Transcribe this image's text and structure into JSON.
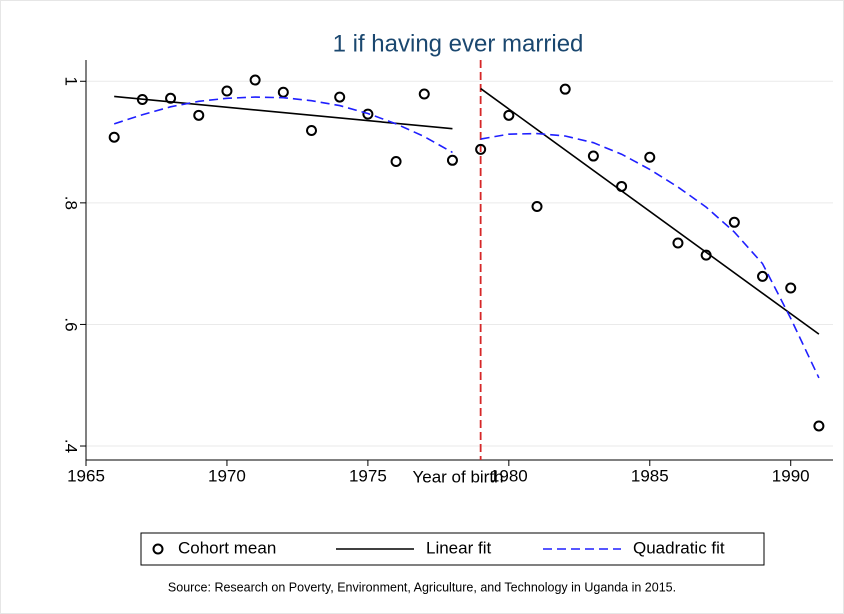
{
  "chart_data": {
    "type": "scatter",
    "title": "1 if having ever married",
    "x_label": "Year of birth",
    "source": "Source: Research on Poverty, Environment, Agriculture, and Technology in Uganda in 2015.",
    "xlim": [
      1965,
      1991.5
    ],
    "xticks": [
      1965,
      1970,
      1975,
      1980,
      1985,
      1990
    ],
    "ylim": [
      0.377,
      1.035
    ],
    "yticks": [
      {
        "value": 0.4,
        "label": ".4"
      },
      {
        "value": 0.6,
        "label": ".6"
      },
      {
        "value": 0.8,
        "label": ".8"
      },
      1
    ],
    "grid": true,
    "vline": 1979,
    "vline_color": "#d62728",
    "series": [
      {
        "name": "Cohort mean",
        "style": "circle",
        "color": "#000000",
        "x": [
          1966,
          1967,
          1968,
          1969,
          1970,
          1971,
          1972,
          1973,
          1974,
          1975,
          1976,
          1977,
          1978,
          1979,
          1980,
          1981,
          1982,
          1983,
          1984,
          1985,
          1986,
          1987,
          1988,
          1989,
          1990,
          1991
        ],
        "values": [
          0.908,
          0.97,
          0.972,
          0.944,
          0.984,
          1.002,
          0.982,
          0.919,
          0.974,
          0.946,
          0.868,
          0.979,
          0.87,
          0.888,
          0.944,
          0.794,
          0.987,
          0.877,
          0.827,
          0.875,
          0.734,
          0.714,
          0.768,
          0.679,
          0.66,
          0.433
        ]
      },
      {
        "name": "Linear fit",
        "style": "solid",
        "color": "#000000",
        "x": [
          1966,
          1978,
          1978.5,
          1979,
          1991
        ],
        "values": [
          0.975,
          0.922,
          null,
          0.988,
          0.584
        ]
      },
      {
        "name": "Quadratic fit",
        "style": "dashed",
        "color": "#1f1fff",
        "x": [
          1966,
          1967,
          1968,
          1969,
          1970,
          1971,
          1972,
          1973,
          1974,
          1975,
          1976,
          1977,
          1978,
          1978.5,
          1979,
          1980,
          1981,
          1982,
          1983,
          1984,
          1985,
          1986,
          1987,
          1988,
          1989,
          1990,
          1991
        ],
        "values": [
          0.93,
          0.945,
          0.958,
          0.967,
          0.972,
          0.974,
          0.973,
          0.968,
          0.96,
          0.947,
          0.93,
          0.909,
          0.883,
          null,
          0.905,
          0.913,
          0.914,
          0.91,
          0.899,
          0.88,
          0.855,
          0.826,
          0.793,
          0.752,
          0.7,
          0.61,
          0.512
        ]
      }
    ]
  }
}
